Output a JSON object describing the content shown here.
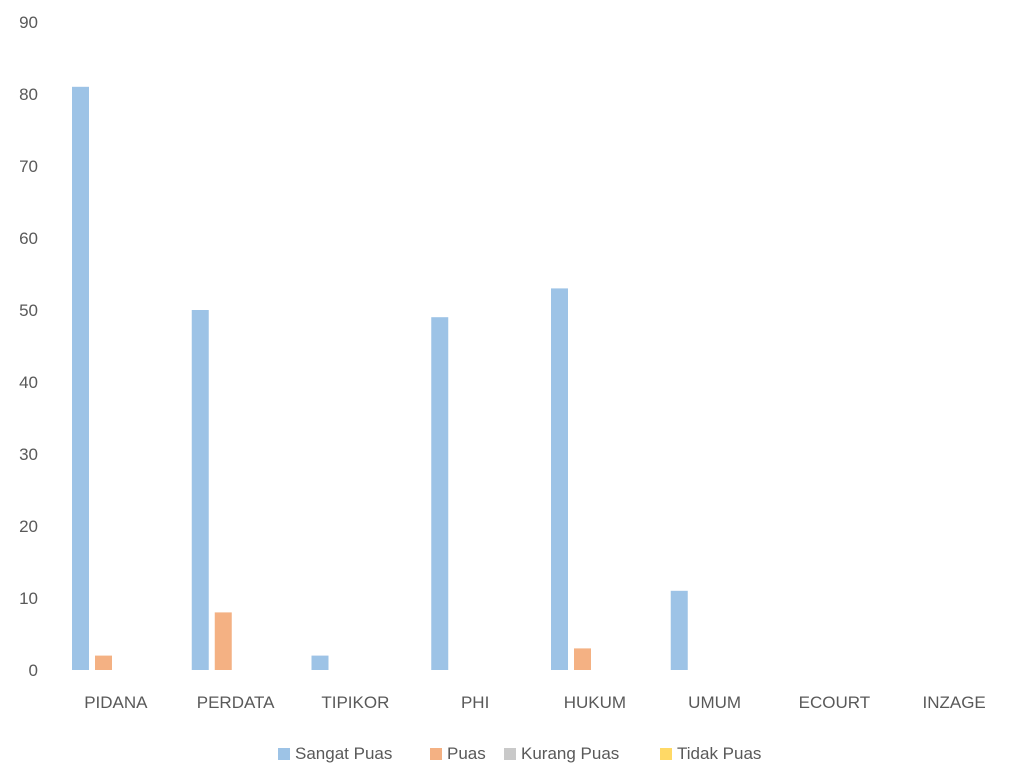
{
  "chart_data": {
    "type": "bar",
    "categories": [
      "PIDANA",
      "PERDATA",
      "TIPIKOR",
      "PHI",
      "HUKUM",
      "UMUM",
      "ECOURT",
      "INZAGE"
    ],
    "series": [
      {
        "name": "Sangat Puas",
        "color": "#9DC3E6",
        "values": [
          81,
          50,
          2,
          49,
          53,
          11,
          0,
          0
        ]
      },
      {
        "name": "Puas",
        "color": "#F4B183",
        "values": [
          2,
          8,
          0,
          0,
          3,
          0,
          0,
          0
        ]
      },
      {
        "name": "Kurang Puas",
        "color": "#C9C9C9",
        "values": [
          0,
          0,
          0,
          0,
          0,
          0,
          0,
          0
        ]
      },
      {
        "name": "Tidak Puas",
        "color": "#FFD966",
        "values": [
          0,
          0,
          0,
          0,
          0,
          0,
          0,
          0
        ]
      }
    ],
    "title": "",
    "xlabel": "",
    "ylabel": "",
    "ylim": [
      0,
      90
    ],
    "yticks": [
      "0",
      "10",
      "20",
      "30",
      "40",
      "50",
      "60",
      "70",
      "80",
      "90"
    ],
    "grid": false,
    "legend_position": "bottom"
  }
}
